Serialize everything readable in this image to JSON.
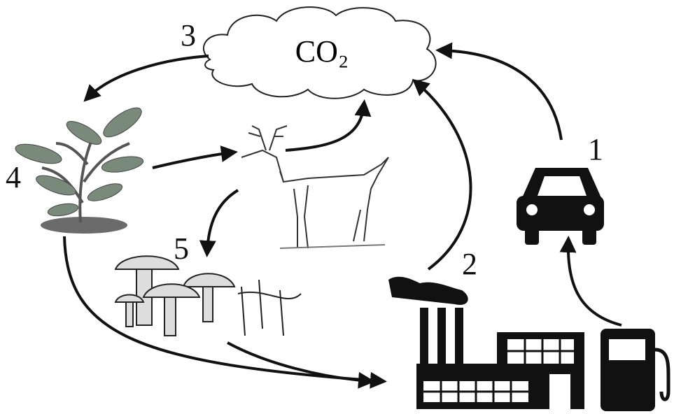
{
  "cloud": {
    "label": "CO₂"
  },
  "steps": [
    "1",
    "2",
    "3",
    "4",
    "5"
  ]
}
